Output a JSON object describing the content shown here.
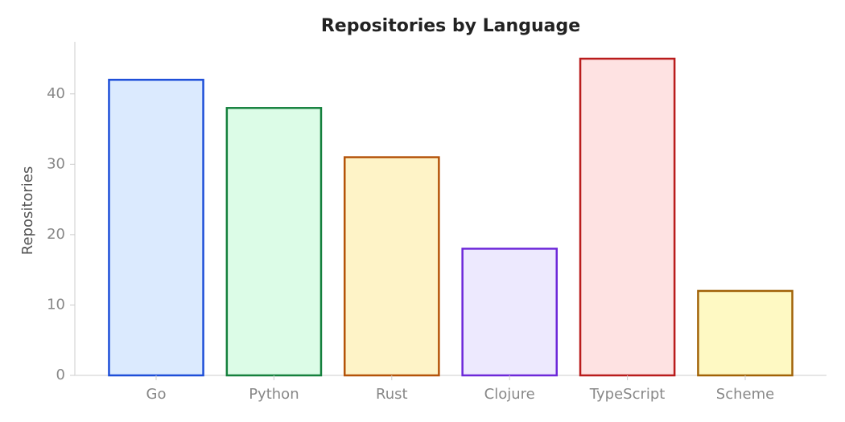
{
  "chart_data": {
    "type": "bar",
    "title": "Repositories by Language",
    "y_label": "Repositories",
    "categories": [
      "Go",
      "Python",
      "Rust",
      "Clojure",
      "TypeScript",
      "Scheme"
    ],
    "values": [
      42,
      38,
      31,
      18,
      45,
      12
    ],
    "colors": [
      "#dbeafe",
      "#dcfce7",
      "#fef3c7",
      "#ede9fe",
      "#fee2e2",
      "#fef9c3"
    ],
    "edge_colors": [
      "#1d4ed8",
      "#15803d",
      "#b45309",
      "#6d28d9",
      "#b91c1c",
      "#a16207"
    ],
    "ylim": [
      0,
      47.4
    ],
    "yticks": [
      0,
      10,
      20,
      30,
      40
    ],
    "grid": false
  }
}
